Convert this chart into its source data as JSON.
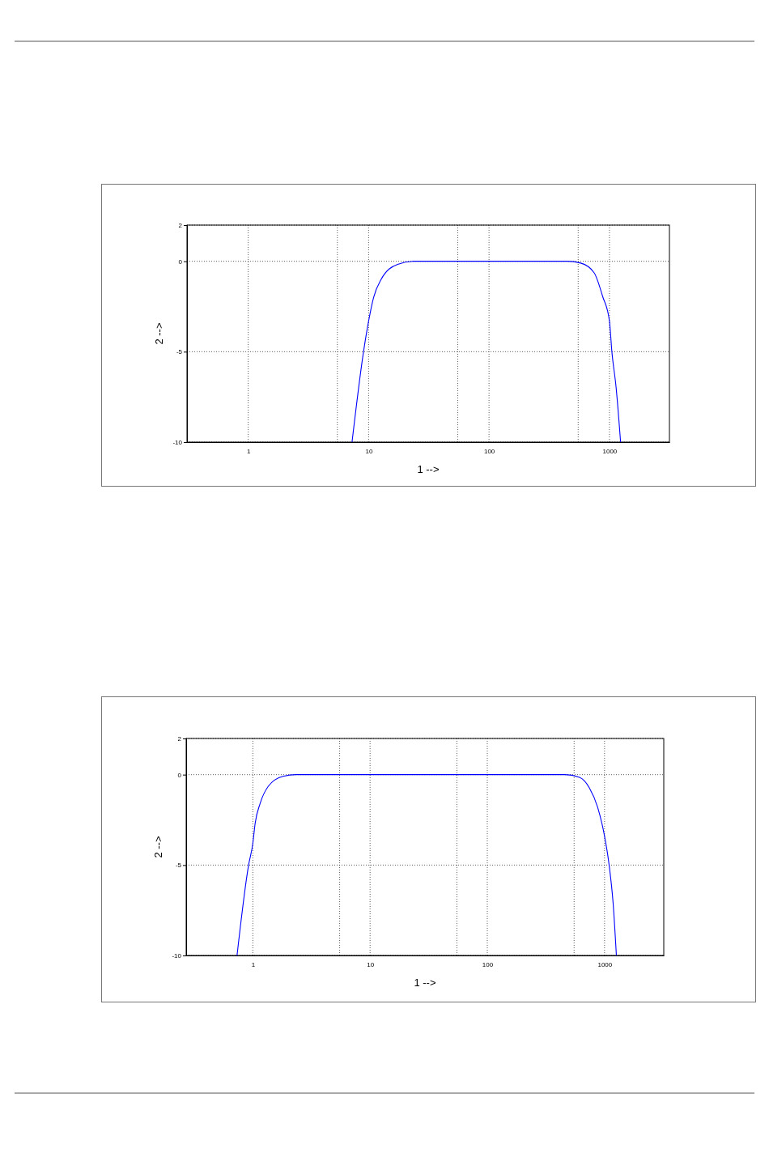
{
  "chart_data": [
    {
      "type": "line",
      "xlabel": "1 -->",
      "ylabel": "2 -->",
      "log": "x",
      "grid": true,
      "xlim": [
        0.31,
        3150
      ],
      "ylim": [
        -10,
        2
      ],
      "xticks": [
        1,
        {
          "value": 5.5,
          "label": null
        },
        10,
        {
          "value": 55,
          "label": null
        },
        100,
        {
          "value": 550,
          "label": null
        },
        1000
      ],
      "yticks": [
        -10,
        -5,
        0,
        2
      ],
      "series": [
        {
          "color": "#0000ff",
          "x": [
            7.28,
            9.07,
            10,
            11,
            12.7,
            17.4,
            24,
            100,
            444,
            577,
            747,
            879,
            1000,
            1048,
            1137,
            1238
          ],
          "values": [
            -10,
            -5,
            -3.3,
            -2,
            -1,
            -0.17,
            0,
            0,
            0,
            -0.1,
            -0.64,
            -1.95,
            -3.3,
            -5,
            -7,
            -10
          ]
        }
      ]
    },
    {
      "type": "line",
      "xlabel": "1 -->",
      "ylabel": "2 -->",
      "log": "x",
      "grid": true,
      "xlim": [
        0.27,
        3200
      ],
      "ylim": [
        -10,
        2
      ],
      "xticks": [
        1,
        {
          "value": 5.5,
          "label": null
        },
        10,
        {
          "value": 55,
          "label": null
        },
        100,
        {
          "value": 550,
          "label": null
        },
        1000
      ],
      "yticks": [
        -10,
        -5,
        0,
        2
      ],
      "series": [
        {
          "color": "#0000ff",
          "x": [
            0.733,
            0.92,
            1,
            1.046,
            1.153,
            1.355,
            1.81,
            2.35,
            100,
            457,
            611,
            742,
            873,
            993,
            1094,
            1183,
            1262
          ],
          "values": [
            -10,
            -5,
            -3.8,
            -2.7,
            -1.6,
            -0.64,
            -0.09,
            0,
            0,
            0,
            -0.15,
            -0.73,
            -1.8,
            -3.3,
            -5,
            -7.1,
            -10
          ]
        }
      ]
    }
  ]
}
